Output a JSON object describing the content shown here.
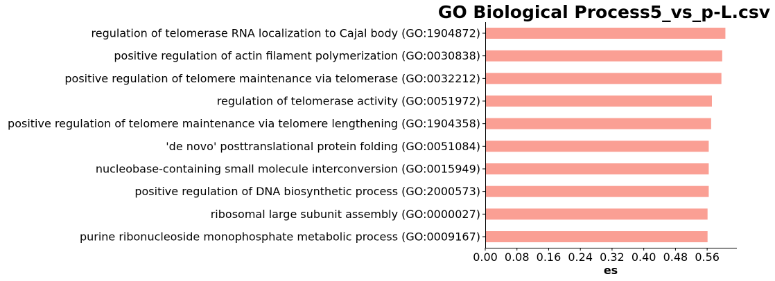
{
  "chart_data": {
    "type": "bar",
    "orientation": "horizontal",
    "title": "GO Biological Process5_vs_p-L.csv",
    "xlabel": "es",
    "ylabel": "",
    "xlim": [
      0,
      0.635
    ],
    "xticks": [
      "0.00",
      "0.08",
      "0.16",
      "0.24",
      "0.32",
      "0.40",
      "0.48",
      "0.56"
    ],
    "bar_color": "#fa9f94",
    "grid": false,
    "categories": [
      "regulation of telomerase RNA localization to Cajal body (GO:1904872)",
      "positive regulation of actin filament polymerization (GO:0030838)",
      "positive regulation of telomere maintenance via telomerase (GO:0032212)",
      "regulation of telomerase activity (GO:0051972)",
      "positive regulation of telomere maintenance via telomere lengthening (GO:1904358)",
      "'de novo' posttranslational protein folding (GO:0051084)",
      "nucleobase-containing small molecule interconversion (GO:0015949)",
      "positive regulation of DNA biosynthetic process (GO:2000573)",
      "ribosomal large subunit assembly (GO:0000027)",
      "purine ribonucleoside monophosphate metabolic process (GO:0009167)"
    ],
    "values": [
      0.606,
      0.598,
      0.596,
      0.572,
      0.57,
      0.564,
      0.564,
      0.564,
      0.561,
      0.561
    ]
  }
}
